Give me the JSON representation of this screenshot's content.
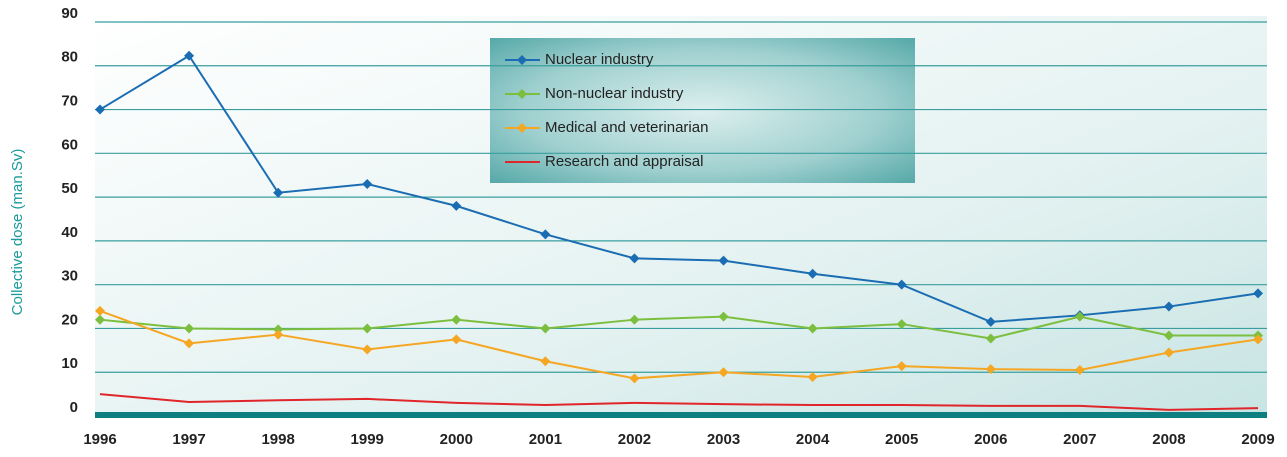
{
  "chart_data": {
    "type": "line",
    "y_label": "Collective dose (man.Sv)",
    "categories": [
      "1996",
      "1997",
      "1998",
      "1999",
      "2000",
      "2001",
      "2002",
      "2003",
      "2004",
      "2005",
      "2006",
      "2007",
      "2008",
      "2009"
    ],
    "series": [
      {
        "name": "Nuclear industry",
        "color": "#1b6db3",
        "marker": "diamond",
        "values": [
          70,
          82.3,
          51,
          53,
          48,
          41.5,
          36,
          35.5,
          32.5,
          30,
          21.5,
          23,
          25,
          28
        ]
      },
      {
        "name": "Non-nuclear industry",
        "color": "#7cbf3f",
        "marker": "diamond",
        "values": [
          22,
          20,
          19.8,
          20,
          22,
          20,
          22,
          22.7,
          20,
          21,
          17.7,
          22.7,
          18.4,
          18.4
        ]
      },
      {
        "name": "Medical and veterinarian",
        "color": "#f5a623",
        "marker": "diamond",
        "values": [
          24,
          16.6,
          18.6,
          15.2,
          17.5,
          12.5,
          8.6,
          10,
          8.9,
          11.4,
          10.7,
          10.5,
          14.5,
          17.5
        ]
      },
      {
        "name": "Research and appraisal",
        "color": "#e0262b",
        "marker": "none",
        "values": [
          5,
          3.2,
          3.6,
          3.9,
          3,
          2.5,
          3,
          2.7,
          2.5,
          2.5,
          2.3,
          2.3,
          1.4,
          1.8
        ]
      }
    ],
    "ylim": [
      0,
      90
    ],
    "yticks": [
      0,
      10,
      20,
      30,
      40,
      50,
      60,
      70,
      80,
      90
    ],
    "grid": true,
    "legend": "top"
  }
}
